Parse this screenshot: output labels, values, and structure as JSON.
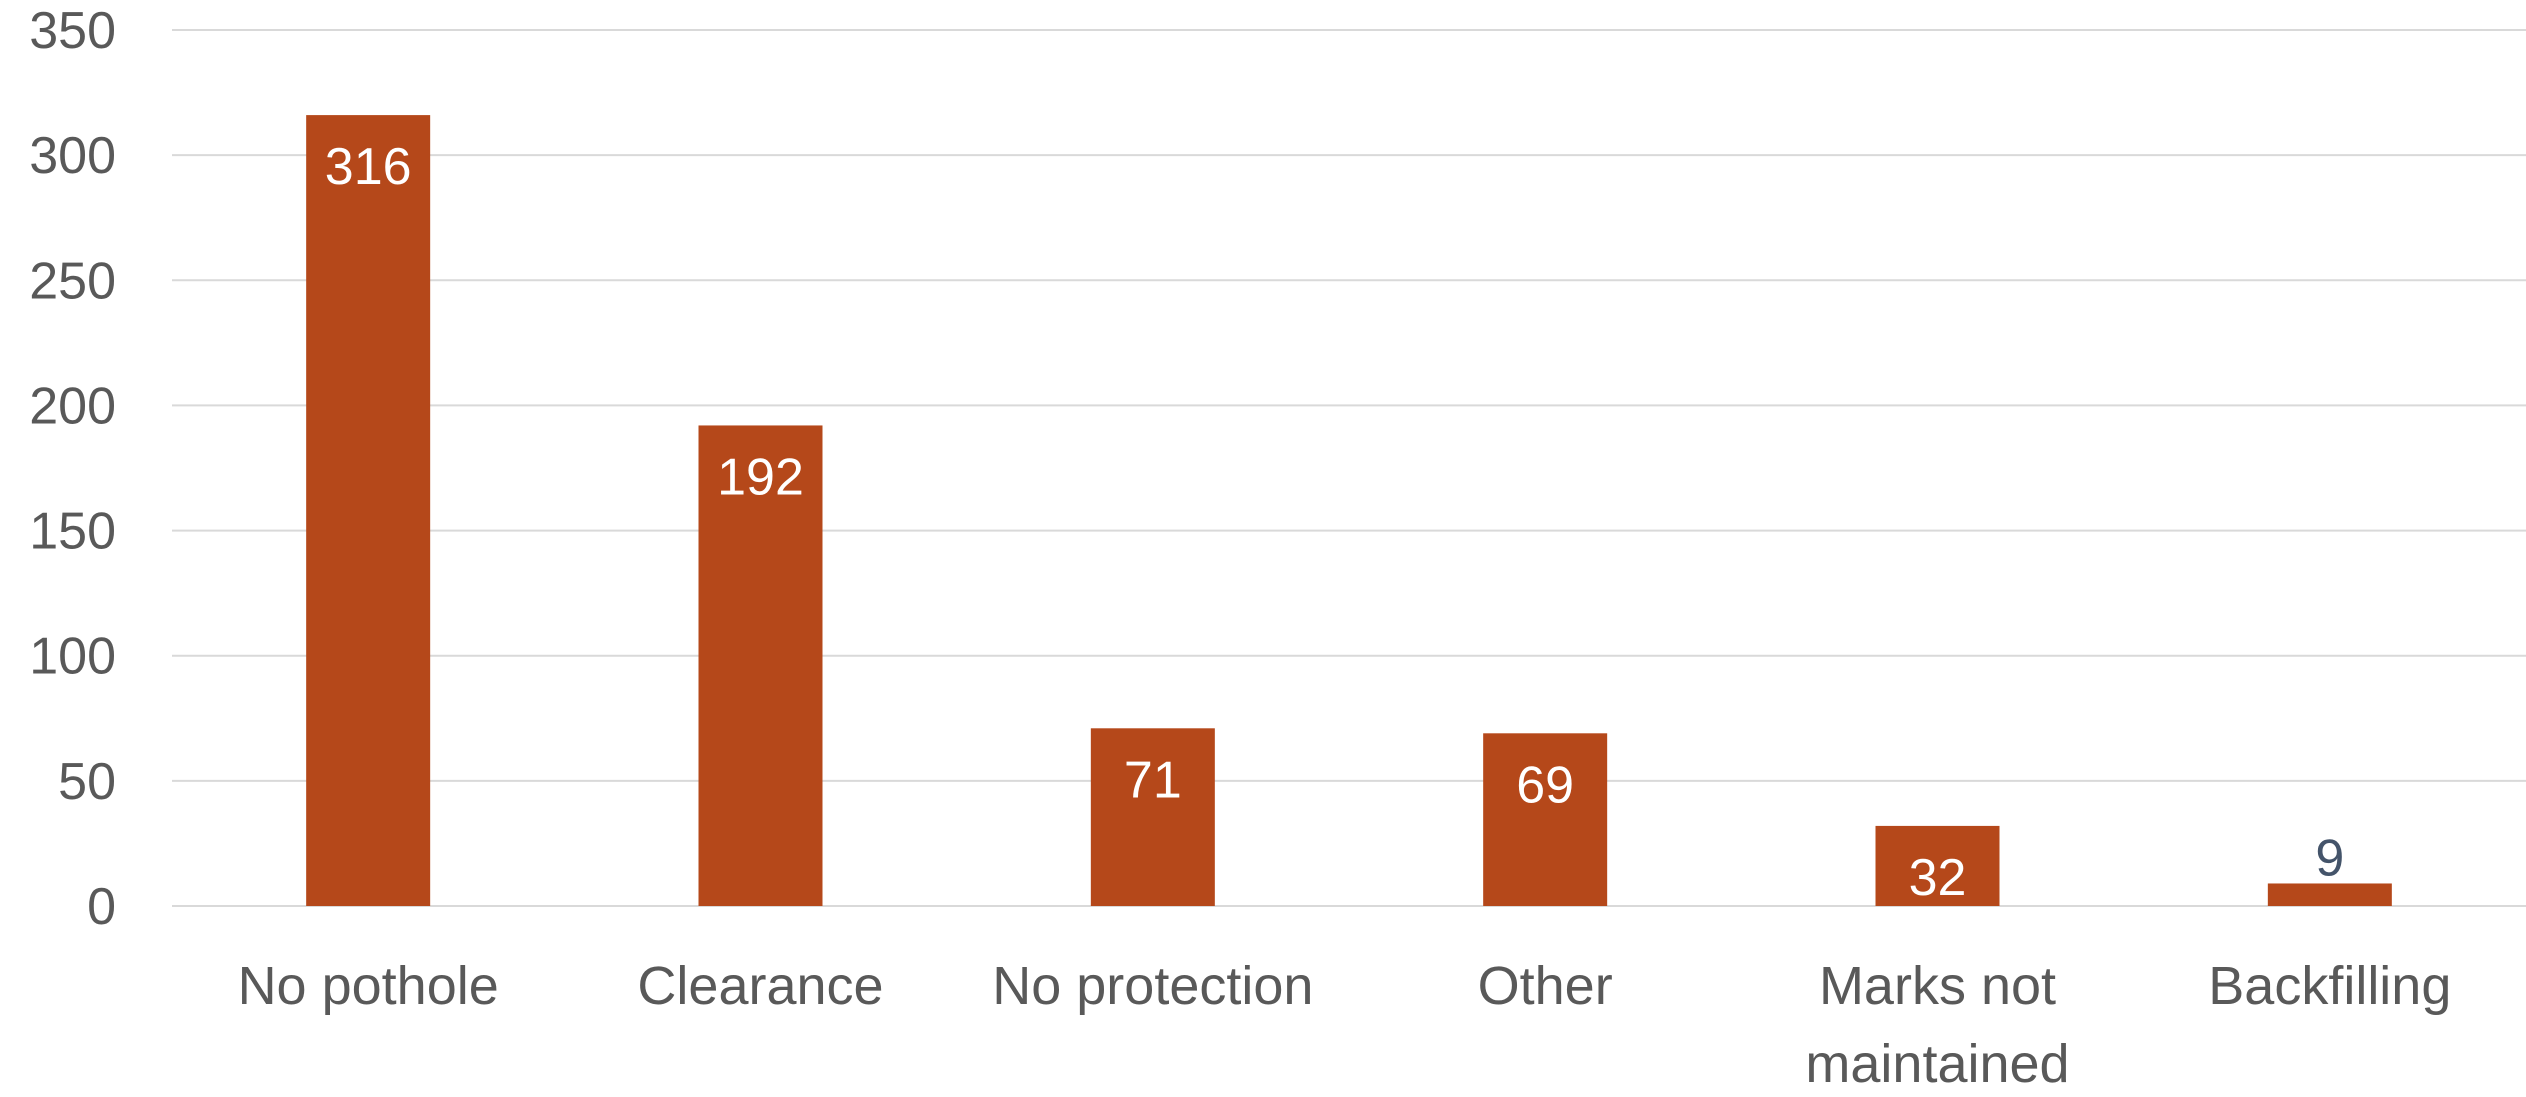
{
  "chart_data": {
    "type": "bar",
    "title": "",
    "xlabel": "",
    "ylabel": "",
    "categories": [
      "No pothole",
      "Clearance",
      "No protection",
      "Other",
      "Marks not maintained",
      "Backfilling"
    ],
    "values": [
      316,
      192,
      71,
      69,
      32,
      9
    ],
    "data_labels": [
      "316",
      "192",
      "71",
      "69",
      "32",
      "9"
    ],
    "ylim": [
      0,
      350
    ],
    "yticks": [
      0,
      50,
      100,
      150,
      200,
      250,
      300,
      350
    ],
    "ytick_labels": [
      "0",
      "50",
      "100",
      "150",
      "200",
      "250",
      "300",
      "350"
    ],
    "grid": true,
    "legend": "none",
    "colors": {
      "bar": "#B5481A",
      "gridline": "#D9D9D9",
      "axis_text": "#595959",
      "label_inside": "#FFFFFF",
      "label_outside": "#44546A"
    }
  }
}
